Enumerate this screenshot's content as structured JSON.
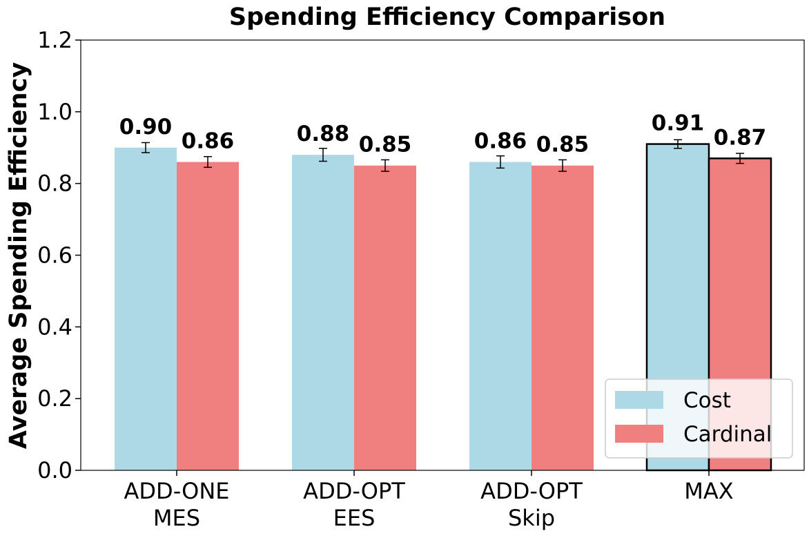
{
  "chart_data": {
    "type": "bar",
    "title": "Spending Efficiency Comparison",
    "xlabel": "",
    "ylabel": "Average Spending Efficiency",
    "ylim": [
      0,
      1.2
    ],
    "yticks": [
      "0.0",
      "0.2",
      "0.4",
      "0.6",
      "0.8",
      "1.0",
      "1.2"
    ],
    "categories": [
      [
        "ADD-ONE",
        "MES"
      ],
      [
        "ADD-OPT",
        "EES"
      ],
      [
        "ADD-OPT",
        "Skip"
      ],
      [
        "MAX"
      ]
    ],
    "series": [
      {
        "name": "Cost",
        "color": "#add8e6",
        "values": [
          0.9,
          0.88,
          0.86,
          0.91
        ],
        "errors": [
          0.014,
          0.018,
          0.017,
          0.012
        ],
        "labels": [
          "0.90",
          "0.88",
          "0.86",
          "0.91"
        ]
      },
      {
        "name": "Cardinal",
        "color": "#f08080",
        "values": [
          0.86,
          0.85,
          0.85,
          0.87
        ],
        "errors": [
          0.015,
          0.016,
          0.016,
          0.014
        ],
        "labels": [
          "0.86",
          "0.85",
          "0.85",
          "0.87"
        ]
      }
    ],
    "highlighted_category": "MAX",
    "legend": {
      "location": "lower-right",
      "entries": [
        "Cost",
        "Cardinal"
      ]
    },
    "grid": false
  }
}
